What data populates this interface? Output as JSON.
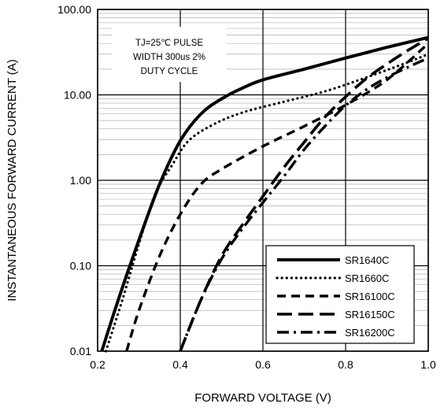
{
  "chart_data": {
    "type": "line",
    "title": "",
    "xlabel": "FORWARD VOLTAGE (V)",
    "ylabel": "INSTANTANEOUS FORWARD CURRENT (A)",
    "xlim": [
      0.2,
      1.0
    ],
    "ylim": [
      0.01,
      100
    ],
    "yscale": "log",
    "grid": true,
    "legend_position": "lower-right",
    "x_ticks": [
      "0.2",
      "0.4",
      "0.6",
      "0.8",
      "1.0"
    ],
    "y_ticks": [
      "0.01",
      "0.10",
      "1.00",
      "10.00",
      "100.00"
    ],
    "annotation": [
      "TJ=25℃ PULSE",
      "WIDTH 300us 2%",
      "DUTY CYCLE"
    ],
    "series": [
      {
        "name": "SR1640C",
        "dash": "solid",
        "x": [
          0.21,
          0.25,
          0.3,
          0.35,
          0.4,
          0.45,
          0.5,
          0.55,
          0.6,
          0.7,
          0.8,
          0.9,
          1.0
        ],
        "y": [
          0.01,
          0.04,
          0.2,
          0.9,
          2.9,
          6.0,
          9.0,
          12.0,
          15.0,
          20.0,
          27.0,
          36.0,
          47.0
        ]
      },
      {
        "name": "SR1660C",
        "dash": "dotted",
        "x": [
          0.22,
          0.26,
          0.3,
          0.34,
          0.38,
          0.42,
          0.48,
          0.55,
          0.65,
          0.75,
          0.85,
          0.95,
          1.0
        ],
        "y": [
          0.01,
          0.04,
          0.18,
          0.7,
          1.5,
          2.9,
          4.5,
          6.2,
          8.3,
          11.0,
          16.0,
          24.0,
          30.0
        ]
      },
      {
        "name": "SR16100C",
        "dash": "dashed",
        "x": [
          0.27,
          0.3,
          0.35,
          0.4,
          0.45,
          0.5,
          0.6,
          0.7,
          0.8,
          0.9,
          1.0
        ],
        "y": [
          0.01,
          0.03,
          0.13,
          0.4,
          0.9,
          1.35,
          2.5,
          4.3,
          7.6,
          15.0,
          40.0
        ]
      },
      {
        "name": "SR16150C",
        "dash": "long-dash",
        "x": [
          0.4,
          0.45,
          0.5,
          0.55,
          0.6,
          0.65,
          0.7,
          0.75,
          0.8,
          0.85,
          0.9,
          0.95,
          1.0
        ],
        "y": [
          0.01,
          0.04,
          0.13,
          0.3,
          0.65,
          1.4,
          2.8,
          5.5,
          9.5,
          15.5,
          23.0,
          33.0,
          46.0
        ]
      },
      {
        "name": "SR16200C",
        "dash": "dash-dot",
        "x": [
          0.4,
          0.45,
          0.5,
          0.55,
          0.6,
          0.65,
          0.7,
          0.75,
          0.8,
          0.85,
          0.9,
          0.95,
          1.0
        ],
        "y": [
          0.01,
          0.04,
          0.12,
          0.27,
          0.55,
          1.1,
          2.3,
          4.3,
          7.5,
          11.5,
          16.0,
          21.0,
          27.0
        ]
      }
    ]
  }
}
